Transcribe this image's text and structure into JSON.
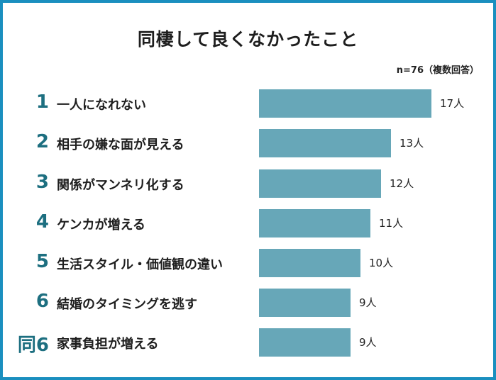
{
  "title": "同棲して良くなかったこと",
  "note": "n=76（複数回答）",
  "colors": {
    "border": "#1a8fbf",
    "bar": "#67a7b8",
    "rank": "#1d6f80"
  },
  "rows": [
    {
      "rank": "1",
      "label": "一人になれない",
      "value_label": "17人"
    },
    {
      "rank": "2",
      "label": "相手の嫌な面が見える",
      "value_label": "13人"
    },
    {
      "rank": "3",
      "label": "関係がマンネリ化する",
      "value_label": "12人"
    },
    {
      "rank": "4",
      "label": "ケンカが増える",
      "value_label": "11人"
    },
    {
      "rank": "5",
      "label": "生活スタイル・価値観の違い",
      "value_label": "10人"
    },
    {
      "rank": "6",
      "label": "結婚のタイミングを逃す",
      "value_label": "9人"
    },
    {
      "rank": "同6",
      "label": "家事負担が増える",
      "value_label": "9人"
    }
  ],
  "chart_data": {
    "type": "bar",
    "orientation": "horizontal",
    "title": "同棲して良くなかったこと",
    "subtitle": "n=76（複数回答）",
    "categories": [
      "一人になれない",
      "相手の嫌な面が見える",
      "関係がマンネリ化する",
      "ケンカが増える",
      "生活スタイル・価値観の違い",
      "結婚のタイミングを逃す",
      "家事負担が増える"
    ],
    "ranks": [
      "1",
      "2",
      "3",
      "4",
      "5",
      "6",
      "同6"
    ],
    "values": [
      17,
      13,
      12,
      11,
      10,
      9,
      9
    ],
    "unit": "人",
    "xlabel": "",
    "ylabel": "",
    "grid": false,
    "legend": "none"
  }
}
